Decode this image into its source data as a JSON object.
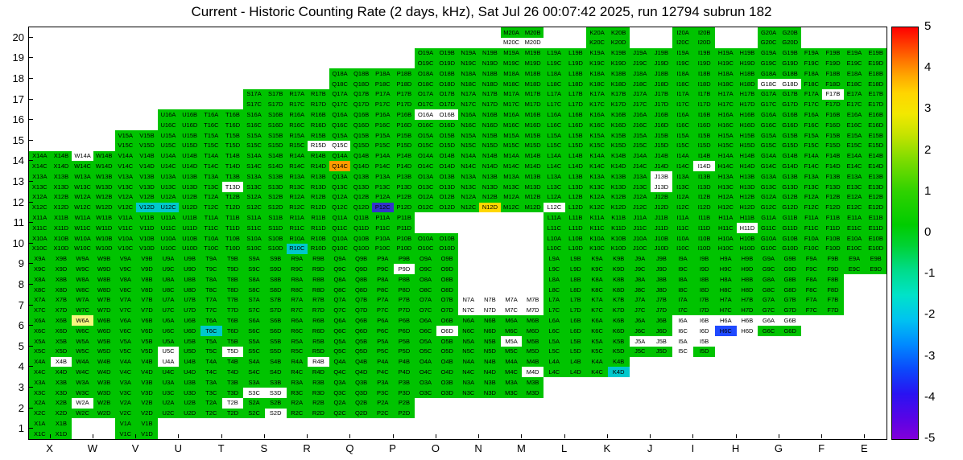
{
  "title": "Current - Historic Counting Rate (2 days, kHz), Sat Jul 26 00:07:42 2025, run 12794 subrun 182",
  "timestamp": "Sat Jul 26 00:07:42 2025",
  "run": "12794",
  "subrun": "182",
  "chart_data": {
    "type": "heatmap",
    "title": "Current - Historic Counting Rate (2 days, kHz), Sat Jul 26 00:07:42 2025, run 12794 subrun 182",
    "units": "kHz",
    "x_axis_labels": [
      "X",
      "W",
      "V",
      "U",
      "T",
      "S",
      "R",
      "Q",
      "P",
      "O",
      "N",
      "M",
      "L",
      "K",
      "J",
      "I",
      "H",
      "G",
      "F",
      "E"
    ],
    "y_axis_labels": [
      "20",
      "19",
      "18",
      "17",
      "16",
      "15",
      "14",
      "13",
      "12",
      "11",
      "10",
      "9",
      "8",
      "7",
      "6",
      "5",
      "4",
      "3",
      "2",
      "1"
    ],
    "quadrants": [
      "A",
      "B",
      "C",
      "D"
    ],
    "rows_present": {
      "1": [
        "X",
        "V"
      ],
      "2": [
        "X",
        "W",
        "V",
        "U",
        "T",
        "S",
        "R",
        "Q",
        "P"
      ],
      "3": [
        "X",
        "W",
        "V",
        "U",
        "T",
        "S",
        "R",
        "Q",
        "P",
        "O",
        "N",
        "M"
      ],
      "4": [
        "X",
        "W",
        "V",
        "U",
        "T",
        "S",
        "R",
        "Q",
        "P",
        "O",
        "N",
        "M",
        "L",
        "K"
      ],
      "5": [
        "X",
        "W",
        "V",
        "U",
        "T",
        "S",
        "R",
        "Q",
        "P",
        "O",
        "N",
        "M",
        "L",
        "K",
        "J",
        "I"
      ],
      "6": [
        "X",
        "W",
        "V",
        "U",
        "T",
        "S",
        "R",
        "Q",
        "P",
        "O",
        "N",
        "M",
        "L",
        "K",
        "J",
        "I",
        "H",
        "G"
      ],
      "7": [
        "X",
        "W",
        "V",
        "U",
        "T",
        "S",
        "R",
        "Q",
        "P",
        "O",
        "N",
        "M",
        "L",
        "K",
        "J",
        "I",
        "H",
        "G",
        "F"
      ],
      "8": [
        "X",
        "W",
        "V",
        "U",
        "T",
        "S",
        "R",
        "Q",
        "P",
        "O",
        "L",
        "K",
        "J",
        "I",
        "H",
        "G",
        "F"
      ],
      "9": [
        "X",
        "W",
        "V",
        "U",
        "T",
        "S",
        "R",
        "Q",
        "P",
        "O",
        "L",
        "K",
        "J",
        "I",
        "H",
        "G",
        "F",
        "E"
      ],
      "10": [
        "X",
        "W",
        "V",
        "U",
        "T",
        "S",
        "R",
        "Q",
        "P",
        "O",
        "L",
        "K",
        "J",
        "I",
        "H",
        "G",
        "F",
        "E"
      ],
      "11": [
        "X",
        "W",
        "V",
        "U",
        "T",
        "S",
        "R",
        "Q",
        "P",
        "L",
        "K",
        "J",
        "I",
        "H",
        "G",
        "F",
        "E"
      ],
      "12": [
        "X",
        "W",
        "V",
        "U",
        "T",
        "S",
        "R",
        "Q",
        "P",
        "O",
        "N",
        "M",
        "L",
        "K",
        "J",
        "I",
        "H",
        "G",
        "F",
        "E"
      ],
      "13": [
        "X",
        "W",
        "V",
        "U",
        "T",
        "S",
        "R",
        "Q",
        "P",
        "O",
        "N",
        "M",
        "L",
        "K",
        "J",
        "I",
        "H",
        "G",
        "F",
        "E"
      ],
      "14": [
        "X",
        "W",
        "V",
        "U",
        "T",
        "S",
        "R",
        "Q",
        "P",
        "O",
        "N",
        "M",
        "L",
        "K",
        "J",
        "I",
        "H",
        "G",
        "F",
        "E"
      ],
      "15": [
        "V",
        "U",
        "T",
        "S",
        "R",
        "Q",
        "P",
        "O",
        "N",
        "M",
        "L",
        "K",
        "J",
        "I",
        "H",
        "G",
        "F",
        "E"
      ],
      "16": [
        "U",
        "T",
        "S",
        "R",
        "Q",
        "P",
        "O",
        "N",
        "M",
        "L",
        "K",
        "J",
        "I",
        "H",
        "G",
        "F",
        "E"
      ],
      "17": [
        "S",
        "R",
        "Q",
        "P",
        "O",
        "N",
        "M",
        "L",
        "K",
        "J",
        "I",
        "H",
        "G",
        "F",
        "E"
      ],
      "18": [
        "Q",
        "P",
        "O",
        "N",
        "M",
        "L",
        "K",
        "J",
        "I",
        "H",
        "G",
        "F",
        "E"
      ],
      "19": [
        "O",
        "N",
        "M",
        "L",
        "K",
        "J",
        "I",
        "H",
        "G",
        "F",
        "E"
      ],
      "20": [
        "M",
        "K",
        "I",
        "G"
      ]
    },
    "default_color": "green",
    "palette": {
      "green": "#00c300",
      "white": "#ffffff",
      "cyan": "#00c8cc",
      "pale_yellow": "#f7f77f",
      "gold": "#ffd700",
      "orange": "#ff9c00",
      "navy": "#3333cc",
      "blue": "#1f49ff"
    },
    "approx_values": {
      "green": 0.4,
      "cyan": -1.7,
      "pale_yellow": 1.5,
      "gold": 2.3,
      "orange": 3.4,
      "navy": -4.2,
      "blue": -3.6,
      "white": null
    },
    "cell_overrides": {
      "M20C": "white",
      "M20D": "white",
      "G18C": "white",
      "G18D": "white",
      "F17B": "white",
      "O16A": "white",
      "O16B": "white",
      "R15D": "white",
      "Q15C": "white",
      "W14A": "white",
      "Q14C": "orange",
      "I14D": "white",
      "T13D": "white",
      "J13B": "white",
      "J13D": "white",
      "V12D": "cyan",
      "U12C": "cyan",
      "P12C": "navy",
      "N12D": "gold",
      "L12C": "white",
      "H11D": "white",
      "R10C": "cyan",
      "P9D": "white",
      "N7A": "white",
      "N7B": "white",
      "N7C": "white",
      "N7D": "white",
      "M7A": "white",
      "M7B": "white",
      "M7C": "white",
      "M7D": "white",
      "W6A": "pale_yellow",
      "T6C": "cyan",
      "O6D": "white",
      "I6A": "white",
      "I6B": "white",
      "I6C": "white",
      "I6D": "white",
      "H6A": "white",
      "H6B": "white",
      "H6C": "blue",
      "H6D": "white",
      "G6A": "white",
      "G6B": "white",
      "M5A": "white",
      "U5C": "white",
      "T5D": "white",
      "J5A": "white",
      "J5B": "white",
      "I5A": "white",
      "I5B": "white",
      "I5C": "white",
      "X4B": "white",
      "U4A": "white",
      "R4B": "white",
      "M4D": "white",
      "K4D": "cyan",
      "S3C": "white",
      "S3D": "white",
      "W2A": "white",
      "T2B": "white",
      "S2D": "white"
    },
    "colorbar": {
      "min": -5,
      "max": 5,
      "ticks": [
        "5",
        "4",
        "3",
        "2",
        "1",
        "0",
        "-1",
        "-2",
        "-3",
        "-4",
        "-5"
      ],
      "gradient_stops": [
        [
          "0%",
          "#8100d9"
        ],
        [
          "5%",
          "#5804e6"
        ],
        [
          "11%",
          "#2913f2"
        ],
        [
          "17%",
          "#0b49fb"
        ],
        [
          "23%",
          "#008aff"
        ],
        [
          "29%",
          "#00c3f0"
        ],
        [
          "35%",
          "#00e3c8"
        ],
        [
          "41%",
          "#00dc8a"
        ],
        [
          "47%",
          "#00d234"
        ],
        [
          "52%",
          "#00cc00"
        ],
        [
          "60%",
          "#2ed200"
        ],
        [
          "68%",
          "#7fdc00"
        ],
        [
          "74%",
          "#c6e300"
        ],
        [
          "79%",
          "#f2e800"
        ],
        [
          "84%",
          "#ffd500"
        ],
        [
          "88%",
          "#ffaa00"
        ],
        [
          "92%",
          "#ff7400"
        ],
        [
          "96%",
          "#ff3a00"
        ],
        [
          "100%",
          "#ff0000"
        ]
      ],
      "grid": false,
      "legend_position": "right"
    }
  }
}
